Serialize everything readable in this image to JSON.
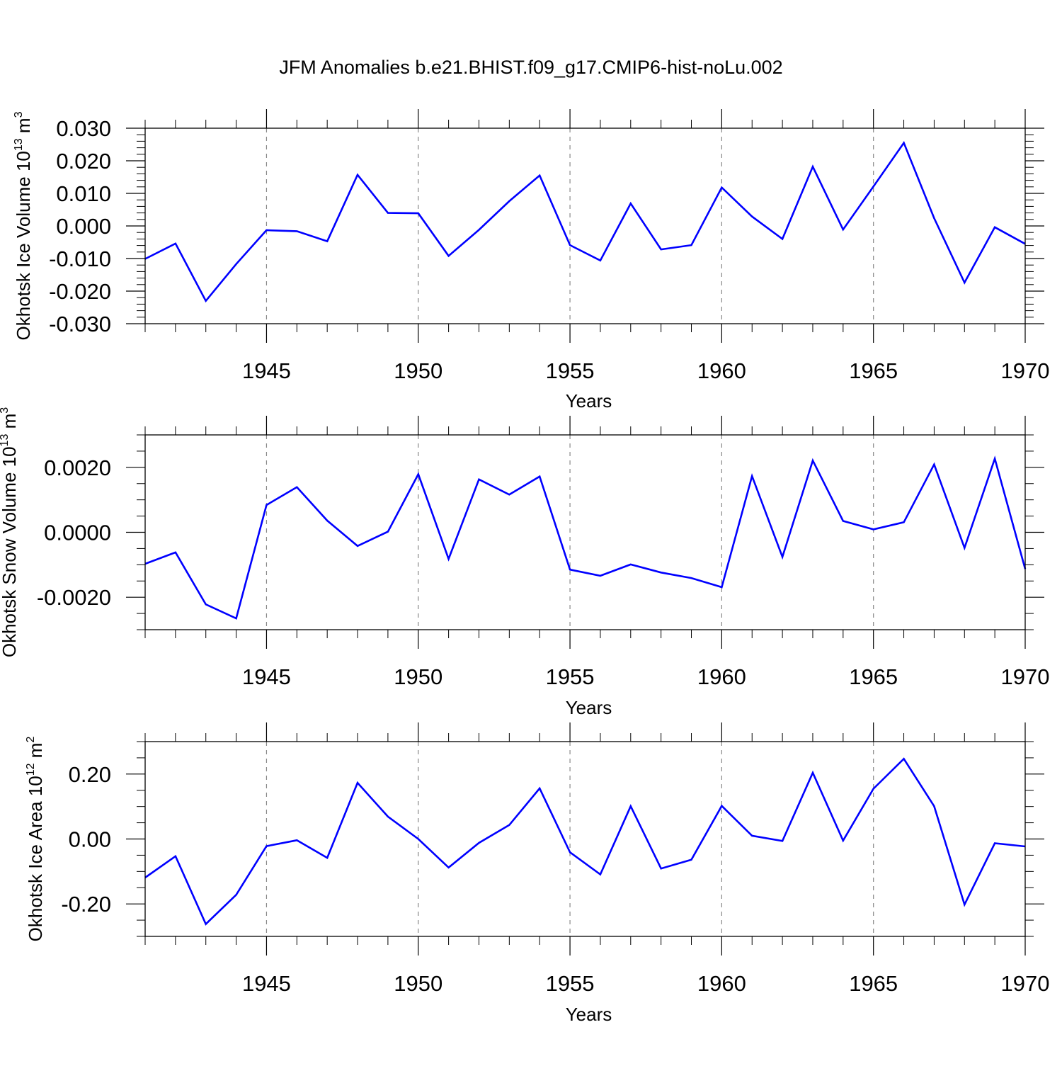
{
  "title": "JFM Anomalies b.e21.BHIST.f09_g17.CMIP6-hist-noLu.002",
  "line_color": "#0000ff",
  "chart_data": [
    {
      "type": "line",
      "ylabel_main": "Okhotsk Ice Volume 10",
      "ylabel_exp": "13",
      "ylabel_unit": " m",
      "ylabel_unit_exp": "3",
      "xlabel": "Years",
      "xlim": [
        1941,
        1970
      ],
      "ylim": [
        -0.03,
        0.03
      ],
      "x_ticks": [
        1945,
        1950,
        1955,
        1960,
        1965,
        1970
      ],
      "x_tick_labels": [
        "1945",
        "1950",
        "1955",
        "1960",
        "1965",
        "1970"
      ],
      "y_ticks": [
        -0.03,
        -0.02,
        -0.01,
        0.0,
        0.01,
        0.02,
        0.03
      ],
      "y_tick_labels": [
        "-0.030",
        "-0.020",
        "-0.010",
        "0.000",
        "0.010",
        "0.020",
        "0.030"
      ],
      "y_minor_step": 0.002,
      "grid": "vertical dashed at major x ticks",
      "series": [
        {
          "name": "Okhotsk Ice Volume",
          "x": [
            1941,
            1942,
            1943,
            1944,
            1945,
            1946,
            1947,
            1948,
            1949,
            1950,
            1951,
            1952,
            1953,
            1954,
            1955,
            1956,
            1957,
            1958,
            1959,
            1960,
            1961,
            1962,
            1963,
            1964,
            1965,
            1966,
            1967,
            1968,
            1969,
            1970
          ],
          "values": [
            -0.0101,
            -0.0054,
            -0.023,
            -0.0117,
            -0.0013,
            -0.0016,
            -0.0047,
            0.0157,
            0.004,
            0.0039,
            -0.0092,
            -0.0012,
            0.0076,
            0.0155,
            -0.0059,
            -0.0106,
            0.0069,
            -0.0072,
            -0.0059,
            0.0118,
            0.0029,
            -0.004,
            0.0182,
            -0.0011,
            0.0121,
            0.0255,
            0.0024,
            -0.0174,
            -0.0004,
            -0.0055
          ]
        }
      ]
    },
    {
      "type": "line",
      "ylabel_main": "Okhotsk Snow Volume 10",
      "ylabel_exp": "13",
      "ylabel_unit": " m",
      "ylabel_unit_exp": "3",
      "xlabel": "Years",
      "xlim": [
        1941,
        1970
      ],
      "ylim": [
        -0.003,
        0.003
      ],
      "x_ticks": [
        1945,
        1950,
        1955,
        1960,
        1965,
        1970
      ],
      "x_tick_labels": [
        "1945",
        "1950",
        "1955",
        "1960",
        "1965",
        "1970"
      ],
      "y_ticks": [
        -0.002,
        0.0,
        0.002
      ],
      "y_tick_labels": [
        "-0.0020",
        "0.0000",
        "0.0020"
      ],
      "y_minor_step": 0.0005,
      "grid": "vertical dashed at major x ticks",
      "series": [
        {
          "name": "Okhotsk Snow Volume",
          "x": [
            1941,
            1942,
            1943,
            1944,
            1945,
            1946,
            1947,
            1948,
            1949,
            1950,
            1951,
            1952,
            1953,
            1954,
            1955,
            1956,
            1957,
            1958,
            1959,
            1960,
            1961,
            1962,
            1963,
            1964,
            1965,
            1966,
            1967,
            1968,
            1969,
            1970
          ],
          "values": [
            -0.00097,
            -0.00062,
            -0.00222,
            -0.00265,
            0.00084,
            0.00139,
            0.00036,
            -0.00042,
            2e-05,
            0.00179,
            -0.00082,
            0.00163,
            0.00116,
            0.00172,
            -0.00115,
            -0.00134,
            -0.00099,
            -0.00124,
            -0.00141,
            -0.00169,
            0.00173,
            -0.00076,
            0.00221,
            0.00035,
            9e-05,
            0.00031,
            0.00209,
            -0.00048,
            0.00227,
            -0.00113
          ]
        }
      ]
    },
    {
      "type": "line",
      "ylabel_main": "Okhotsk Ice Area 10",
      "ylabel_exp": "12",
      "ylabel_unit": " m",
      "ylabel_unit_exp": "2",
      "xlabel": "Years",
      "xlim": [
        1941,
        1970
      ],
      "ylim": [
        -0.3,
        0.3
      ],
      "x_ticks": [
        1945,
        1950,
        1955,
        1960,
        1965,
        1970
      ],
      "x_tick_labels": [
        "1945",
        "1950",
        "1955",
        "1960",
        "1965",
        "1970"
      ],
      "y_ticks": [
        -0.2,
        0.0,
        0.2
      ],
      "y_tick_labels": [
        "-0.20",
        "0.00",
        "0.20"
      ],
      "y_minor_step": 0.05,
      "grid": "vertical dashed at major x ticks",
      "series": [
        {
          "name": "Okhotsk Ice Area",
          "x": [
            1941,
            1942,
            1943,
            1944,
            1945,
            1946,
            1947,
            1948,
            1949,
            1950,
            1951,
            1952,
            1953,
            1954,
            1955,
            1956,
            1957,
            1958,
            1959,
            1960,
            1961,
            1962,
            1963,
            1964,
            1965,
            1966,
            1967,
            1968,
            1969,
            1970
          ],
          "values": [
            -0.119,
            -0.053,
            -0.262,
            -0.172,
            -0.022,
            -0.004,
            -0.058,
            0.173,
            0.069,
            0.0,
            -0.088,
            -0.012,
            0.043,
            0.156,
            -0.041,
            -0.109,
            0.101,
            -0.091,
            -0.064,
            0.102,
            0.01,
            -0.006,
            0.204,
            -0.005,
            0.155,
            0.247,
            0.101,
            -0.202,
            -0.013,
            -0.023
          ]
        }
      ]
    }
  ]
}
